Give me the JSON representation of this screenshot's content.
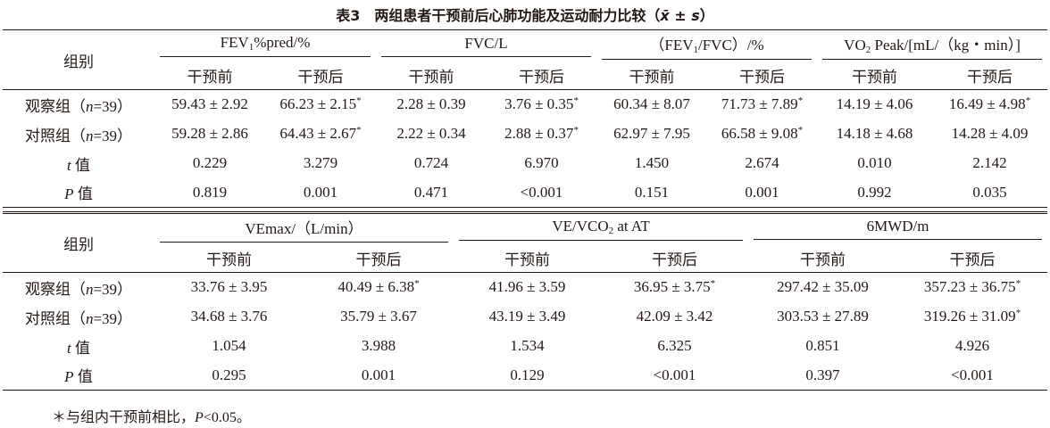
{
  "title": [
    "表3　两组患者干预前后心肺功能及运动耐力比较（",
    {
      "text": "x̄",
      "style": "i"
    },
    " ± ",
    {
      "text": "s",
      "style": "i"
    },
    "）"
  ],
  "tables": [
    {
      "corner": "组别",
      "groups": [
        [
          "FEV",
          {
            "text": "1",
            "style": "sub"
          },
          "%pred/%"
        ],
        [
          "FVC/L"
        ],
        [
          "（FEV",
          {
            "text": "1",
            "style": "sub"
          },
          "/FVC）/%"
        ],
        [
          "VO",
          {
            "text": "2",
            "style": "sub"
          },
          " Peak/[mL/（kg・min）]"
        ]
      ],
      "subheaders": [
        "干预前",
        "干预后",
        "干预前",
        "干预后",
        "干预前",
        "干预后",
        "干预前",
        "干预后"
      ],
      "rows": [
        {
          "label": [
            "观察组（",
            {
              "text": "n",
              "style": "i"
            },
            "=39）"
          ],
          "cells": [
            [
              "59.43 ± 2.92"
            ],
            [
              "66.23 ± 2.15",
              {
                "text": "*",
                "style": "sup"
              }
            ],
            [
              "2.28 ± 0.39"
            ],
            [
              "3.76 ± 0.35",
              {
                "text": "*",
                "style": "sup"
              }
            ],
            [
              "60.34 ± 8.07"
            ],
            [
              "71.73 ± 7.89",
              {
                "text": "*",
                "style": "sup"
              }
            ],
            [
              "14.19 ± 4.06"
            ],
            [
              "16.49 ± 4.98",
              {
                "text": "*",
                "style": "sup"
              }
            ]
          ]
        },
        {
          "label": [
            "对照组（",
            {
              "text": "n",
              "style": "i"
            },
            "=39）"
          ],
          "cells": [
            [
              "59.28 ± 2.86"
            ],
            [
              "64.43 ± 2.67",
              {
                "text": "*",
                "style": "sup"
              }
            ],
            [
              "2.22 ± 0.34"
            ],
            [
              "2.88 ± 0.37",
              {
                "text": "*",
                "style": "sup"
              }
            ],
            [
              "62.97 ± 7.95"
            ],
            [
              "66.58 ± 9.08",
              {
                "text": "*",
                "style": "sup"
              }
            ],
            [
              "14.18 ± 4.68"
            ],
            [
              "14.28 ± 4.09"
            ]
          ]
        },
        {
          "label": [
            {
              "text": "t",
              "style": "i"
            },
            " 值"
          ],
          "cells": [
            [
              "0.229"
            ],
            [
              "3.279"
            ],
            [
              "0.724"
            ],
            [
              "6.970"
            ],
            [
              "1.450"
            ],
            [
              "2.674"
            ],
            [
              "0.010"
            ],
            [
              "2.142"
            ]
          ]
        },
        {
          "label": [
            {
              "text": "P",
              "style": "i"
            },
            " 值"
          ],
          "cells": [
            [
              "0.819"
            ],
            [
              "0.001"
            ],
            [
              "0.471"
            ],
            [
              "<0.001"
            ],
            [
              "0.151"
            ],
            [
              "0.001"
            ],
            [
              "0.992"
            ],
            [
              "0.035"
            ]
          ]
        }
      ]
    },
    {
      "corner": "组别",
      "groups": [
        [
          "VEmax/（L/min）"
        ],
        [
          "VE/VCO",
          {
            "text": "2",
            "style": "sub"
          },
          " at AT"
        ],
        [
          "6MWD/m"
        ]
      ],
      "subheaders": [
        "干预前",
        "干预后",
        "干预前",
        "干预后",
        "干预前",
        "干预后"
      ],
      "rows": [
        {
          "label": [
            "观察组（",
            {
              "text": "n",
              "style": "i"
            },
            "=39）"
          ],
          "cells": [
            [
              "33.76 ± 3.95"
            ],
            [
              "40.49 ± 6.38",
              {
                "text": "*",
                "style": "sup"
              }
            ],
            [
              "41.96 ± 3.59"
            ],
            [
              "36.95 ± 3.75",
              {
                "text": "*",
                "style": "sup"
              }
            ],
            [
              "297.42 ± 35.09"
            ],
            [
              "357.23 ± 36.75",
              {
                "text": "*",
                "style": "sup"
              }
            ]
          ]
        },
        {
          "label": [
            "对照组（",
            {
              "text": "n",
              "style": "i"
            },
            "=39）"
          ],
          "cells": [
            [
              "34.68 ± 3.76"
            ],
            [
              "35.79 ± 3.67"
            ],
            [
              "43.19 ± 3.49"
            ],
            [
              "42.09 ± 3.42"
            ],
            [
              "303.53 ± 27.89"
            ],
            [
              "319.26 ± 31.09",
              {
                "text": "*",
                "style": "sup"
              }
            ]
          ]
        },
        {
          "label": [
            {
              "text": "t",
              "style": "i"
            },
            " 值"
          ],
          "cells": [
            [
              "1.054"
            ],
            [
              "3.988"
            ],
            [
              "1.534"
            ],
            [
              "6.325"
            ],
            [
              "0.851"
            ],
            [
              "4.926"
            ]
          ]
        },
        {
          "label": [
            {
              "text": "P",
              "style": "i"
            },
            " 值"
          ],
          "cells": [
            [
              "0.295"
            ],
            [
              "0.001"
            ],
            [
              "0.129"
            ],
            [
              "<0.001"
            ],
            [
              "0.397"
            ],
            [
              "<0.001"
            ]
          ]
        }
      ]
    }
  ],
  "footnote": [
    "＊与组内干预前相比，",
    {
      "text": "P",
      "style": "i"
    },
    "<0.05。"
  ]
}
